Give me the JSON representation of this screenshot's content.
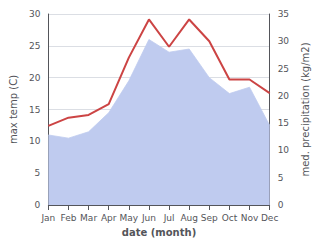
{
  "chart_data": {
    "type": "line",
    "xlabel": "date (month)",
    "ylabel": "max temp (C)",
    "y2label": "med. precipitation (kg/m2)",
    "categories": [
      "Jan",
      "Feb",
      "Mar",
      "Apr",
      "May",
      "Jun",
      "Jul",
      "Aug",
      "Sep",
      "Oct",
      "Nov",
      "Dec"
    ],
    "series": [
      {
        "type": "area",
        "color": "#bfcbef",
        "values": [
          11.0,
          10.5,
          11.5,
          14.5,
          19.5,
          26.0,
          24.0,
          24.5,
          20.0,
          17.5,
          18.5,
          12.5
        ]
      },
      {
        "type": "line",
        "color": "#cc4444",
        "axis": "y2",
        "values": [
          14.5,
          16.0,
          16.5,
          18.5,
          27.0,
          34.0,
          29.0,
          34.0,
          30.0,
          23.0,
          23.0,
          20.5
        ]
      }
    ],
    "ylim": [
      0,
      30
    ],
    "yticks": [
      0,
      5,
      10,
      15,
      20,
      25,
      30
    ],
    "y2lim": [
      0,
      35
    ],
    "y2ticks": [
      0,
      5,
      10,
      15,
      20,
      25,
      30,
      35
    ],
    "grid": true
  }
}
